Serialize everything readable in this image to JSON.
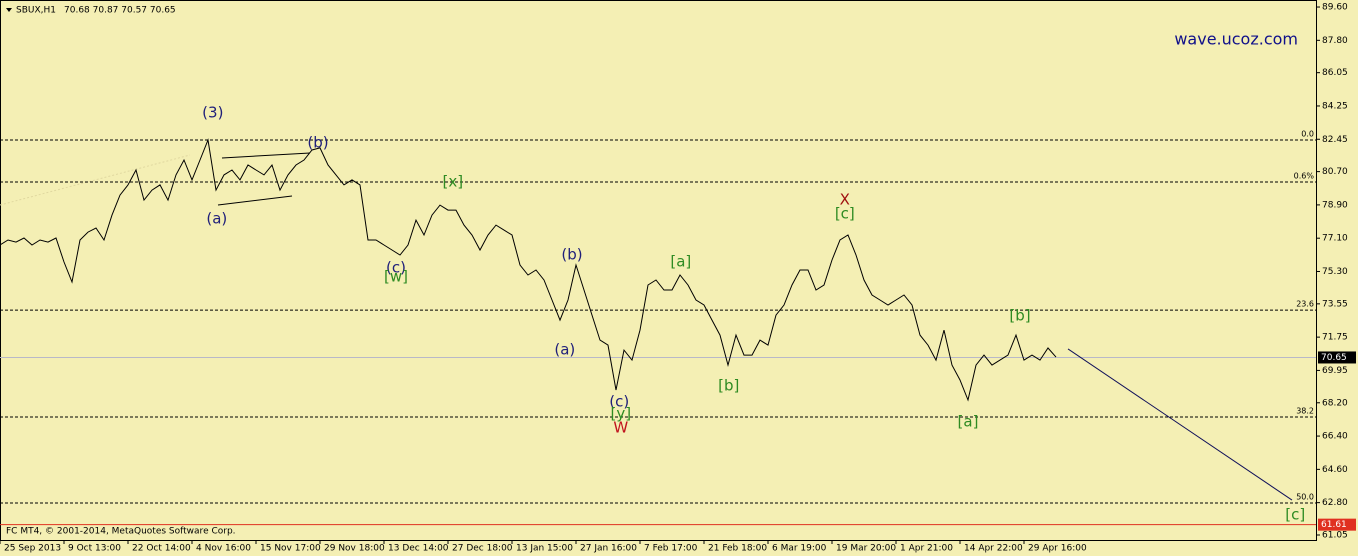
{
  "chart_data": {
    "type": "line",
    "symbol": "SBUX,H1",
    "ohlc": "70.68 70.87 70.57 70.65",
    "watermark": "wave.ucoz.com",
    "copyright": "FC MT4, © 2001-2014, MetaQuotes Software Corp.",
    "color": "#000000",
    "values": [
      76.73,
      77.0,
      76.89,
      77.11,
      76.73,
      77.0,
      76.89,
      77.11,
      75.81,
      74.73,
      77.0,
      77.43,
      77.65,
      77.0,
      78.35,
      79.43,
      79.98,
      80.79,
      79.16,
      79.7,
      79.98,
      79.16,
      80.52,
      81.33,
      80.25,
      81.33,
      82.41,
      79.7,
      80.52,
      80.79,
      80.25,
      81.06,
      80.79,
      80.52,
      81.06,
      79.7,
      80.52,
      81.06,
      81.33,
      81.87,
      81.98,
      81.06,
      80.52,
      79.98,
      80.25,
      79.98,
      77.0,
      77.0,
      76.73,
      76.46,
      76.19,
      76.73,
      78.08,
      77.27,
      78.35,
      78.89,
      78.62,
      78.62,
      77.81,
      77.27,
      76.46,
      77.27,
      77.81,
      77.54,
      77.27,
      75.65,
      75.11,
      75.38,
      74.84,
      73.76,
      72.67,
      73.76,
      75.65,
      74.3,
      72.94,
      71.59,
      71.32,
      68.89,
      71.05,
      70.51,
      72.13,
      74.57,
      74.84,
      74.3,
      74.3,
      75.11,
      74.57,
      73.76,
      73.49,
      72.67,
      71.86,
      70.24,
      71.86,
      70.78,
      70.78,
      71.59,
      71.32,
      72.94,
      73.49,
      74.57,
      75.38,
      75.38,
      74.3,
      74.57,
      75.92,
      77.0,
      77.27,
      76.19,
      74.84,
      74.03,
      73.76,
      73.49,
      73.76,
      74.03,
      73.49,
      71.86,
      71.32,
      70.51,
      72.13,
      70.24,
      69.43,
      68.35,
      70.24,
      70.78,
      70.24,
      70.51,
      70.78,
      71.86,
      70.51,
      70.78,
      70.51,
      71.16,
      70.67
    ],
    "xlim": [
      0,
      164.5
    ],
    "xticks": [
      {
        "value": 0,
        "label": "25 Sep 2013"
      },
      {
        "value": 8,
        "label": "9 Oct 13:00"
      },
      {
        "value": 16,
        "label": "22 Oct 14:00"
      },
      {
        "value": 24,
        "label": "4 Nov 16:00"
      },
      {
        "value": 32,
        "label": "15 Nov 17:00"
      },
      {
        "value": 40,
        "label": "29 Nov 18:00"
      },
      {
        "value": 48,
        "label": "13 Dec 14:00"
      },
      {
        "value": 56,
        "label": "27 Dec 18:00"
      },
      {
        "value": 64,
        "label": "13 Jan 15:00"
      },
      {
        "value": 72,
        "label": "27 Jan 16:00"
      },
      {
        "value": 80,
        "label": "7 Feb 17:00"
      },
      {
        "value": 88,
        "label": "21 Feb 18:00"
      },
      {
        "value": 96,
        "label": "6 Mar 19:00"
      },
      {
        "value": 104,
        "label": "19 Mar 20:00"
      },
      {
        "value": 112,
        "label": "1 Apr 21:00"
      },
      {
        "value": 120,
        "label": "14 Apr 22:00"
      },
      {
        "value": 128,
        "label": "29 Apr 16:00"
      }
    ],
    "ylim": [
      60.78,
      89.98
    ],
    "yticks": [
      {
        "value": 89.6,
        "label": "89.60"
      },
      {
        "value": 87.8,
        "label": "87.80"
      },
      86.05,
      {
        "value": 84.25,
        "label": "84.25"
      },
      82.45,
      {
        "value": 80.7,
        "label": "80.70"
      },
      {
        "value": 78.9,
        "label": "78.90"
      },
      {
        "value": 77.1,
        "label": "77.10"
      },
      {
        "value": 75.3,
        "label": "75.30"
      },
      73.55,
      71.75,
      69.95,
      {
        "value": 68.2,
        "label": "68.20"
      },
      {
        "value": 66.4,
        "label": "66.40"
      },
      {
        "value": 64.6,
        "label": "64.60"
      },
      {
        "value": 62.8,
        "label": "62.80"
      },
      61.05
    ],
    "fib_levels": [
      {
        "label": "0.0",
        "value": 82.41
      },
      {
        "label": "0.6%",
        "value": 80.14
      },
      {
        "label": "23.6",
        "value": 73.21
      },
      {
        "label": "38.2",
        "value": 67.43
      },
      {
        "label": "50.0",
        "value": 62.78
      }
    ],
    "last_price": {
      "value": 70.65,
      "label": "70.65"
    },
    "alert_price": {
      "value": 61.61,
      "label": "61.61"
    },
    "trendline": {
      "x": [
        133.5,
        161.5
      ],
      "y": [
        71.11,
        62.94
      ]
    },
    "annotations": [
      {
        "text": "(3)",
        "x": 26.6,
        "y": 83.87,
        "color": "#1f1f7a"
      },
      {
        "text": "(a)",
        "x": 27.1,
        "y": 78.14,
        "color": "#1f1f7a"
      },
      {
        "text": "(b)",
        "x": 39.75,
        "y": 82.25,
        "color": "#1f1f7a"
      },
      {
        "text": "(c)",
        "x": 49.5,
        "y": 75.49,
        "color": "#1f1f7a"
      },
      {
        "text": "[w]",
        "x": 49.5,
        "y": 75.0,
        "color": "#2e8b22"
      },
      {
        "text": "[x]",
        "x": 56.6,
        "y": 80.14,
        "color": "#2e8b22"
      },
      {
        "text": "(b)",
        "x": 71.5,
        "y": 76.19,
        "color": "#1f1f7a"
      },
      {
        "text": "(a)",
        "x": 70.6,
        "y": 71.05,
        "color": "#1f1f7a"
      },
      {
        "text": "(c)",
        "x": 77.4,
        "y": 68.24,
        "color": "#1f1f7a"
      },
      {
        "text": "[y]",
        "x": 77.6,
        "y": 67.59,
        "color": "#2e8b22"
      },
      {
        "text": "W",
        "x": 77.6,
        "y": 66.83,
        "color": "#c0141e"
      },
      {
        "text": "[a]",
        "x": 85.1,
        "y": 75.81,
        "color": "#2e8b22"
      },
      {
        "text": "[b]",
        "x": 91.1,
        "y": 69.11,
        "color": "#2e8b22"
      },
      {
        "text": "X",
        "x": 105.6,
        "y": 79.16,
        "color": "#a01010"
      },
      {
        "text": "[c]",
        "x": 105.6,
        "y": 78.41,
        "color": "#2e8b22"
      },
      {
        "text": "[b]",
        "x": 127.5,
        "y": 72.89,
        "color": "#2e8b22"
      },
      {
        "text": "[a]",
        "x": 121,
        "y": 67.16,
        "color": "#2e8b22"
      },
      {
        "text": "[c]",
        "x": 161.9,
        "y": 62.13,
        "color": "#2e8b22"
      }
    ]
  }
}
